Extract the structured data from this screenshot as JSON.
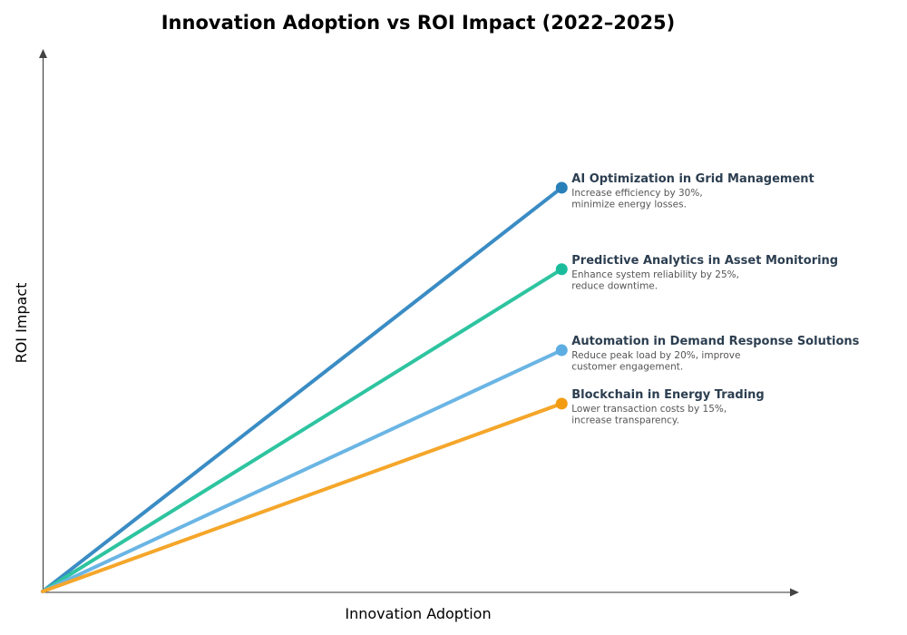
{
  "chart_data": {
    "type": "line",
    "title": "Innovation Adoption vs ROI Impact (2022–2025)",
    "xlabel": "Innovation Adoption",
    "ylabel": "ROI Impact",
    "xlim": [
      0,
      10
    ],
    "ylim": [
      0,
      10
    ],
    "grid": false,
    "ticks_shown": false,
    "series": [
      {
        "name": "AI Optimization in Grid Management",
        "description": [
          "Increase efficiency by 30%,",
          "minimize energy losses."
        ],
        "x": [
          0,
          6.87
        ],
        "y": [
          0,
          7.48
        ],
        "color": "#3a8cc4",
        "marker_color": "#2980b9"
      },
      {
        "name": "Predictive Analytics in Asset Monitoring",
        "description": [
          "Enhance system reliability by 25%,",
          "reduce downtime."
        ],
        "x": [
          0,
          6.87
        ],
        "y": [
          0,
          5.97
        ],
        "color": "#2ec4a0",
        "marker_color": "#1abc9c"
      },
      {
        "name": "Automation in Demand Response Solutions",
        "description": [
          "Reduce peak load by 20%, improve",
          "customer engagement."
        ],
        "x": [
          0,
          6.87
        ],
        "y": [
          0,
          4.47
        ],
        "color": "#6ab5e4",
        "marker_color": "#5dade2"
      },
      {
        "name": "Blockchain in Energy Trading",
        "description": [
          "Lower transaction costs by 15%,",
          "increase transparency."
        ],
        "x": [
          0,
          6.87
        ],
        "y": [
          0,
          3.48
        ],
        "color": "#f5a62a",
        "marker_color": "#f39c12"
      }
    ]
  }
}
